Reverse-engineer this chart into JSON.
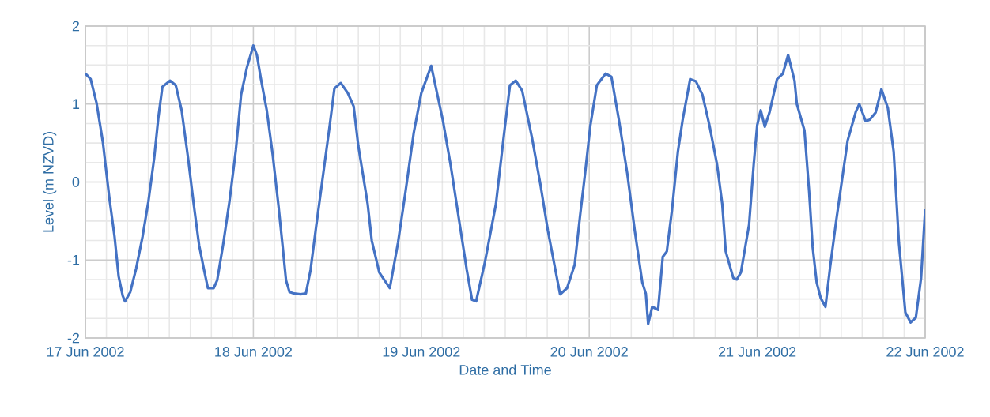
{
  "chart_data": {
    "type": "line",
    "xlabel": "Date and Time",
    "ylabel": "Level (m NZVD)",
    "x": [
      "2002-06-17T00:00",
      "2002-06-17T00:45",
      "2002-06-17T01:35",
      "2002-06-17T02:30",
      "2002-06-17T03:25",
      "2002-06-17T04:10",
      "2002-06-17T04:45",
      "2002-06-17T05:20",
      "2002-06-17T05:40",
      "2002-06-17T06:25",
      "2002-06-17T07:15",
      "2002-06-17T08:10",
      "2002-06-17T09:00",
      "2002-06-17T09:50",
      "2002-06-17T10:25",
      "2002-06-17T11:00",
      "2002-06-17T12:05",
      "2002-06-17T12:55",
      "2002-06-17T13:45",
      "2002-06-17T14:40",
      "2002-06-17T15:30",
      "2002-06-17T16:15",
      "2002-06-17T16:55",
      "2002-06-17T17:30",
      "2002-06-17T18:20",
      "2002-06-17T18:50",
      "2002-06-17T19:40",
      "2002-06-17T20:35",
      "2002-06-17T21:30",
      "2002-06-17T22:15",
      "2002-06-17T23:05",
      "2002-06-18T00:00",
      "2002-06-18T00:30",
      "2002-06-18T01:05",
      "2002-06-18T01:55",
      "2002-06-18T02:45",
      "2002-06-18T03:35",
      "2002-06-18T04:10",
      "2002-06-18T04:40",
      "2002-06-18T05:10",
      "2002-06-18T05:50",
      "2002-06-18T06:45",
      "2002-06-18T07:30",
      "2002-06-18T08:10",
      "2002-06-18T09:00",
      "2002-06-18T09:55",
      "2002-06-18T10:55",
      "2002-06-18T11:35",
      "2002-06-18T12:30",
      "2002-06-18T13:30",
      "2002-06-18T14:20",
      "2002-06-18T15:00",
      "2002-06-18T16:20",
      "2002-06-18T16:55",
      "2002-06-18T18:00",
      "2002-06-18T19:30",
      "2002-06-18T20:40",
      "2002-06-18T21:45",
      "2002-06-18T22:55",
      "2002-06-19T00:00",
      "2002-06-19T01:25",
      "2002-06-19T03:05",
      "2002-06-19T04:10",
      "2002-06-19T05:20",
      "2002-06-19T06:30",
      "2002-06-19T07:15",
      "2002-06-19T07:50",
      "2002-06-19T09:05",
      "2002-06-19T10:40",
      "2002-06-19T11:45",
      "2002-06-19T12:40",
      "2002-06-19T13:30",
      "2002-06-19T14:25",
      "2002-06-19T15:50",
      "2002-06-19T17:00",
      "2002-06-19T18:05",
      "2002-06-19T19:10",
      "2002-06-19T19:50",
      "2002-06-19T20:50",
      "2002-06-19T21:55",
      "2002-06-19T22:40",
      "2002-06-19T23:25",
      "2002-06-20T00:10",
      "2002-06-20T01:05",
      "2002-06-20T02:20",
      "2002-06-20T03:10",
      "2002-06-20T04:15",
      "2002-06-20T05:25",
      "2002-06-20T06:30",
      "2002-06-20T07:35",
      "2002-06-20T08:05",
      "2002-06-20T08:25",
      "2002-06-20T09:00",
      "2002-06-20T09:50",
      "2002-06-20T10:30",
      "2002-06-20T11:05",
      "2002-06-20T11:50",
      "2002-06-20T12:40",
      "2002-06-20T13:20",
      "2002-06-20T14:25",
      "2002-06-20T15:15",
      "2002-06-20T16:10",
      "2002-06-20T17:10",
      "2002-06-20T18:15",
      "2002-06-20T19:00",
      "2002-06-20T19:30",
      "2002-06-20T20:35",
      "2002-06-20T21:05",
      "2002-06-20T21:40",
      "2002-06-20T22:50",
      "2002-06-20T23:30",
      "2002-06-21T00:00",
      "2002-06-21T00:30",
      "2002-06-21T01:05",
      "2002-06-21T01:45",
      "2002-06-21T02:50",
      "2002-06-21T03:40",
      "2002-06-21T04:25",
      "2002-06-21T05:20",
      "2002-06-21T05:40",
      "2002-06-21T06:45",
      "2002-06-21T07:25",
      "2002-06-21T07:55",
      "2002-06-21T08:30",
      "2002-06-21T09:05",
      "2002-06-21T09:45",
      "2002-06-21T10:25",
      "2002-06-21T11:15",
      "2002-06-21T12:10",
      "2002-06-21T12:55",
      "2002-06-21T14:05",
      "2002-06-21T14:35",
      "2002-06-21T15:30",
      "2002-06-21T16:05",
      "2002-06-21T16:55",
      "2002-06-21T17:45",
      "2002-06-21T18:40",
      "2002-06-21T19:30",
      "2002-06-21T20:15",
      "2002-06-21T21:10",
      "2002-06-21T21:55",
      "2002-06-21T22:40",
      "2002-06-21T23:25",
      "2002-06-22T00:00"
    ],
    "series": [
      {
        "color": "#4472c4",
        "values": [
          1.39,
          1.32,
          1.02,
          0.51,
          -0.2,
          -0.7,
          -1.21,
          -1.46,
          -1.53,
          -1.41,
          -1.11,
          -0.7,
          -0.25,
          0.31,
          0.82,
          1.22,
          1.3,
          1.24,
          0.92,
          0.31,
          -0.3,
          -0.81,
          -1.11,
          -1.36,
          -1.36,
          -1.26,
          -0.81,
          -0.25,
          0.41,
          1.12,
          1.47,
          1.75,
          1.63,
          1.32,
          0.92,
          0.36,
          -0.3,
          -0.81,
          -1.26,
          -1.41,
          -1.43,
          -1.44,
          -1.43,
          -1.13,
          -0.55,
          0.06,
          0.73,
          1.2,
          1.27,
          1.14,
          0.97,
          0.46,
          -0.28,
          -0.75,
          -1.16,
          -1.36,
          -0.78,
          -0.12,
          0.63,
          1.14,
          1.49,
          0.79,
          0.23,
          -0.45,
          -1.13,
          -1.51,
          -1.53,
          -1.03,
          -0.28,
          0.56,
          1.24,
          1.3,
          1.17,
          0.56,
          -0.02,
          -0.62,
          -1.13,
          -1.44,
          -1.36,
          -1.06,
          -0.45,
          0.12,
          0.73,
          1.24,
          1.39,
          1.35,
          0.79,
          0.12,
          -0.62,
          -1.29,
          -1.43,
          -1.82,
          -1.6,
          -1.64,
          -0.96,
          -0.89,
          -0.35,
          0.39,
          0.79,
          1.32,
          1.29,
          1.12,
          0.73,
          0.23,
          -0.28,
          -0.89,
          -1.23,
          -1.25,
          -1.16,
          -0.55,
          0.23,
          0.73,
          0.92,
          0.71,
          0.89,
          1.32,
          1.39,
          1.63,
          1.3,
          1.0,
          0.66,
          -0.12,
          -0.83,
          -1.29,
          -1.49,
          -1.6,
          -1.09,
          -0.52,
          0.06,
          0.53,
          0.9,
          1.0,
          0.78,
          0.8,
          0.89,
          1.19,
          0.95,
          0.39,
          -0.78,
          -1.67,
          -1.8,
          -1.74,
          -1.23,
          -0.35
        ]
      }
    ],
    "xlim": [
      "2002-06-17",
      "2002-06-22"
    ],
    "xticks": [
      {
        "value": "2002-06-17",
        "label": "17 Jun 2002"
      },
      {
        "value": "2002-06-18",
        "label": "18 Jun 2002"
      },
      {
        "value": "2002-06-19",
        "label": "19 Jun 2002"
      },
      {
        "value": "2002-06-20",
        "label": "20 Jun 2002"
      },
      {
        "value": "2002-06-21",
        "label": "21 Jun 2002"
      },
      {
        "value": "2002-06-22",
        "label": "22 Jun 2002"
      }
    ],
    "ylim": [
      -2,
      2
    ],
    "yticks": [
      -2,
      -1,
      0,
      1,
      2
    ],
    "grid": true,
    "legend": false,
    "marker": "none",
    "line_style": "solid"
  }
}
